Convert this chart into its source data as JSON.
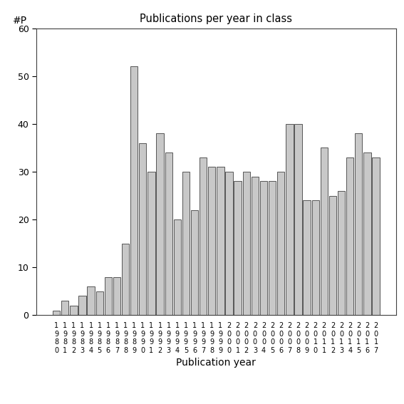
{
  "title": "Publications per year in class",
  "xlabel": "Publication year",
  "bar_color": "#c8c8c8",
  "bar_edgecolor": "#404040",
  "background_color": "#ffffff",
  "ylim": [
    0,
    60
  ],
  "yticks": [
    0,
    10,
    20,
    30,
    40,
    50,
    60
  ],
  "years": [
    "1980",
    "1981",
    "1982",
    "1983",
    "1984",
    "1985",
    "1986",
    "1987",
    "1988",
    "1989",
    "1990",
    "1991",
    "1992",
    "1993",
    "1994",
    "1995",
    "1996",
    "1997",
    "1998",
    "1999",
    "2000",
    "2001",
    "2002",
    "2003",
    "2004",
    "2005",
    "2006",
    "2007",
    "2008",
    "2009",
    "2010",
    "2011",
    "2012",
    "2013",
    "2014",
    "2015",
    "2016",
    "2017"
  ],
  "values": [
    1,
    3,
    2,
    4,
    6,
    5,
    8,
    8,
    15,
    52,
    36,
    30,
    38,
    34,
    20,
    30,
    22,
    33,
    31,
    31,
    30,
    28,
    30,
    29,
    28,
    28,
    30,
    40,
    40,
    24,
    24,
    35,
    25,
    26,
    33,
    38,
    34,
    33
  ]
}
